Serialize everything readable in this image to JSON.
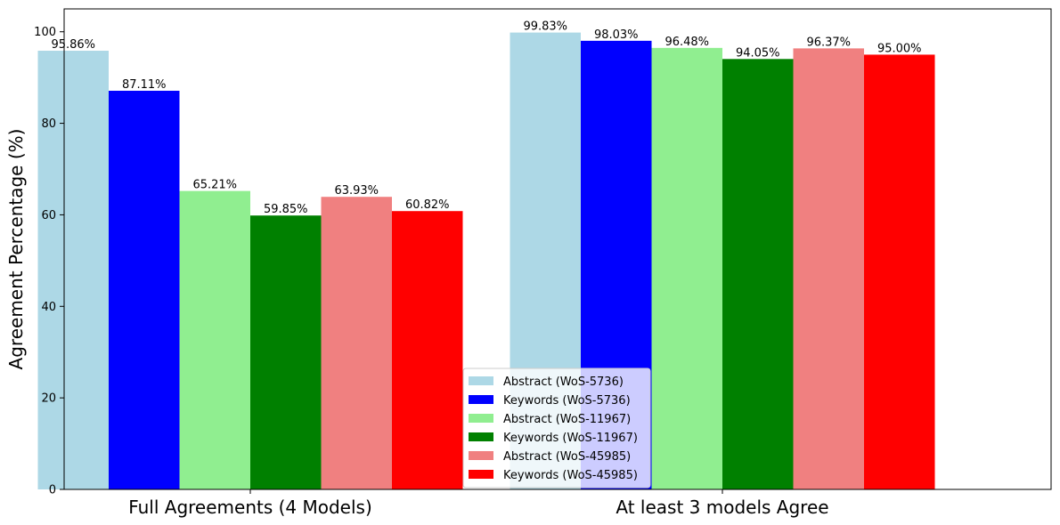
{
  "chart_data": {
    "type": "bar",
    "title": "",
    "xlabel": "",
    "ylabel": "Agreement Percentage (%)",
    "ylim": [
      0,
      105
    ],
    "yticks": [
      0,
      20,
      40,
      60,
      80,
      100
    ],
    "categories": [
      "Full Agreements (4 Models)",
      "At least 3 models Agree"
    ],
    "legend_position": "lower-center",
    "grid": false,
    "series": [
      {
        "name": "Abstract (WoS-5736)",
        "color": "#add8e6",
        "values": [
          95.86,
          99.83
        ],
        "labels": [
          "95.86%",
          "99.83%"
        ]
      },
      {
        "name": "Keywords (WoS-5736)",
        "color": "#0000ff",
        "values": [
          87.11,
          98.03
        ],
        "labels": [
          "87.11%",
          "98.03%"
        ]
      },
      {
        "name": "Abstract (WoS-11967)",
        "color": "#90ee90",
        "values": [
          65.21,
          96.48
        ],
        "labels": [
          "65.21%",
          "96.48%"
        ]
      },
      {
        "name": "Keywords (WoS-11967)",
        "color": "#008000",
        "values": [
          59.85,
          94.05
        ],
        "labels": [
          "59.85%",
          "94.05%"
        ]
      },
      {
        "name": "Abstract (WoS-45985)",
        "color": "#f08080",
        "values": [
          63.93,
          96.37
        ],
        "labels": [
          "63.93%",
          "96.37%"
        ]
      },
      {
        "name": "Keywords (WoS-45985)",
        "color": "#ff0000",
        "values": [
          60.82,
          95.0
        ],
        "labels": [
          "60.82%",
          "95.00%"
        ]
      }
    ]
  }
}
